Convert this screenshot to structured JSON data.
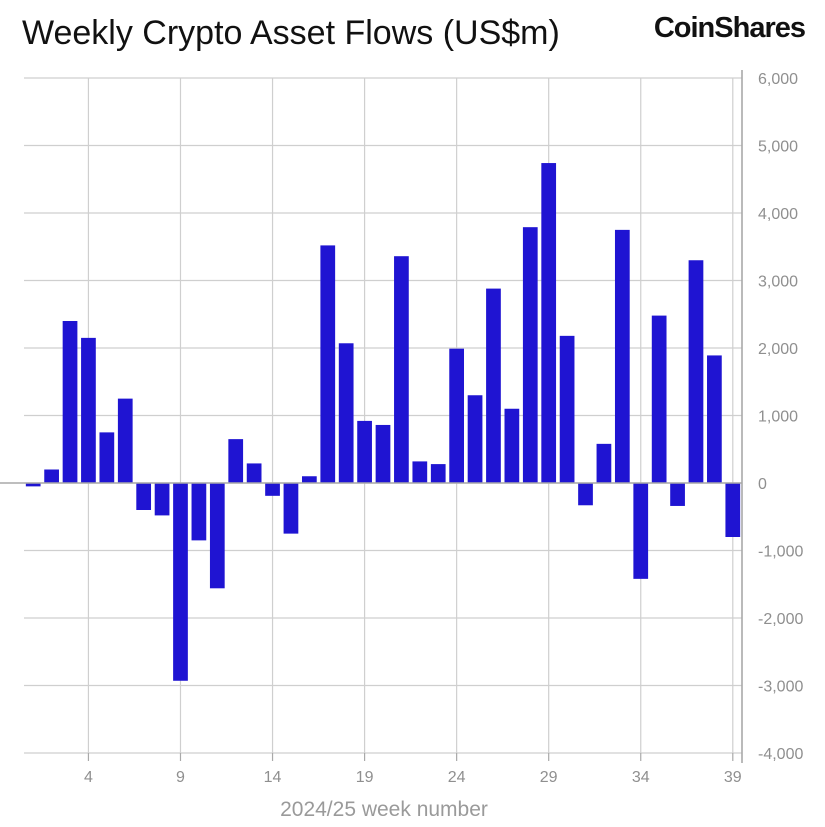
{
  "chart_data": {
    "type": "bar",
    "title": "Weekly Crypto Asset Flows (US$m)",
    "brand": "CoinShares",
    "xlabel": "2024/25 week number",
    "ylabel": "",
    "ylim": [
      -4000,
      6000
    ],
    "yticks": [
      6000,
      5000,
      4000,
      3000,
      2000,
      1000,
      0,
      -1000,
      -2000,
      -3000,
      -4000
    ],
    "ytick_labels": [
      "6,000",
      "5,000",
      "4,000",
      "3,000",
      "2,000",
      "1,000",
      "0",
      "-1,000",
      "-2,000",
      "-3,000",
      "-4,000"
    ],
    "xtick_labels": [
      "4",
      "9",
      "14",
      "19",
      "24",
      "29",
      "34",
      "39"
    ],
    "y_axis_position": "right",
    "grid": true,
    "bar_color": "#1f14d2",
    "categories": [
      "1",
      "2",
      "3",
      "4",
      "5",
      "6",
      "7",
      "8",
      "9",
      "10",
      "11",
      "12",
      "13",
      "14",
      "15",
      "16",
      "17",
      "18",
      "19",
      "20",
      "21",
      "22",
      "23",
      "24",
      "25",
      "26",
      "27",
      "28",
      "29",
      "30",
      "31",
      "32",
      "33",
      "34",
      "35",
      "36",
      "37",
      "38",
      "39"
    ],
    "values": [
      -50,
      200,
      2400,
      2150,
      750,
      1250,
      -400,
      -480,
      -2930,
      -850,
      -1560,
      650,
      290,
      -190,
      -750,
      100,
      3520,
      2070,
      920,
      860,
      3360,
      320,
      280,
      1990,
      1300,
      2880,
      1100,
      3790,
      4740,
      2180,
      -330,
      580,
      3750,
      -1420,
      2480,
      -340,
      3300,
      1890,
      -800
    ]
  }
}
